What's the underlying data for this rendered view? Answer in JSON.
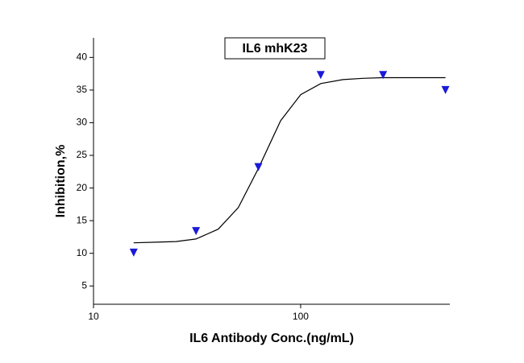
{
  "chart_data": {
    "type": "scatter",
    "title": "IL6 mhK23",
    "x_label": "IL6 Antibody Conc.(ng/mL)",
    "y_label": "Inhibition,%",
    "x_scale": "log",
    "xlim": [
      10,
      525
    ],
    "xticks": [
      10,
      100
    ],
    "ylim": [
      2.2,
      43
    ],
    "yticks": [
      5,
      10,
      15,
      20,
      25,
      30,
      35,
      40
    ],
    "points": {
      "color": "#1a1ad8",
      "marker": "triangle-down",
      "x": [
        15.625,
        31.25,
        62.5,
        125,
        250,
        500
      ],
      "values": [
        10.1,
        13.4,
        23.2,
        37.3,
        37.3,
        35.0
      ]
    },
    "fit": {
      "color": "#000000",
      "x": [
        15.625,
        20,
        25,
        31.25,
        40,
        50,
        62.5,
        80,
        100,
        125,
        160,
        200,
        250,
        350,
        500
      ],
      "values": [
        11.6,
        11.7,
        11.8,
        12.2,
        13.7,
        17.0,
        23.0,
        30.3,
        34.3,
        36.0,
        36.6,
        36.8,
        36.9,
        36.9,
        36.9
      ]
    }
  }
}
